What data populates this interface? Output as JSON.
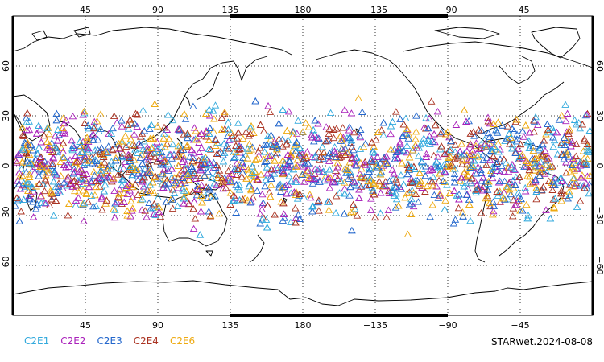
{
  "map": {
    "projection": "equirectangular, central longitude 180",
    "lon_range": [
      0,
      360
    ],
    "lat_range": [
      -90,
      90
    ],
    "grid": "dotted",
    "lon_tick_labels": [
      "45",
      "90",
      "135",
      "180",
      "−135",
      "−90",
      "−45"
    ],
    "lat_tick_labels": [
      "60",
      "30",
      "0",
      "−30",
      "−60"
    ],
    "marker": "open triangle"
  },
  "legend": {
    "items": [
      {
        "label": "C2E1",
        "color": "#33aadd"
      },
      {
        "label": "C2E2",
        "color": "#aa22bb"
      },
      {
        "label": "C2E3",
        "color": "#2266cc"
      },
      {
        "label": "C2E4",
        "color": "#aa3322"
      },
      {
        "label": "C2E6",
        "color": "#eeaa11"
      }
    ]
  },
  "footer": {
    "product_label": "STARwet.2024-08-08"
  }
}
